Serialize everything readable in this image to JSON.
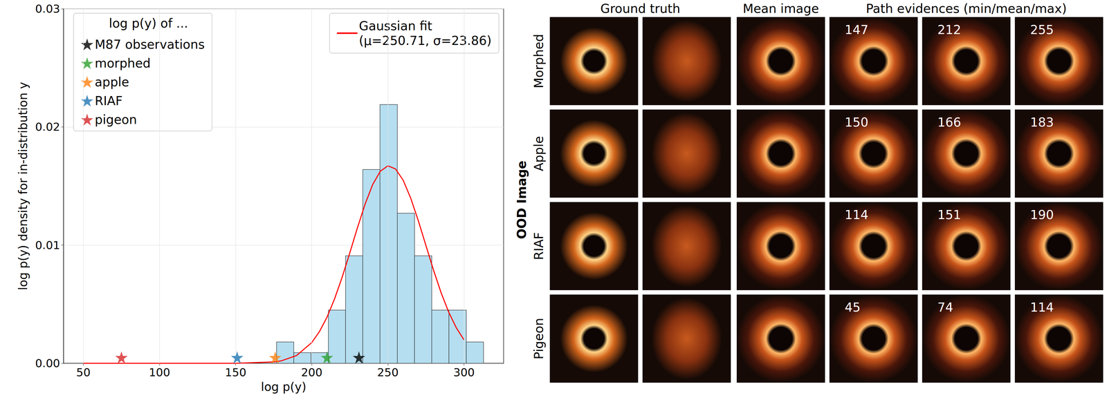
{
  "chart_data": {
    "type": "histogram",
    "x_label": "log p(y)",
    "y_label": "log p(y) density for in-distribution y",
    "bins": [
      176.9,
      188.2,
      199.5,
      210.9,
      222.2,
      233.5,
      244.8,
      256.2,
      267.5,
      278.8,
      290.1,
      301.5,
      312.8
    ],
    "values": [
      0.0018,
      0.0009,
      0.0009,
      0.0045,
      0.0091,
      0.0164,
      0.0219,
      0.0127,
      0.0091,
      0.0045,
      0.0045,
      0.0018
    ],
    "color": "#b5def0",
    "xlim": [
      37,
      326
    ],
    "xticks": [
      50,
      100,
      150,
      200,
      250,
      300
    ],
    "ylim": [
      0,
      0.03
    ],
    "yticks": [
      {
        "value": 0,
        "label": "0.00"
      },
      {
        "value": 0.01,
        "label": "0.01"
      },
      {
        "value": 0.02,
        "label": "0.02"
      },
      {
        "value": 0.03,
        "label": "0.03"
      }
    ],
    "grid": true,
    "legend": "top",
    "legend_title": "log p(y) of ...",
    "series": [
      {
        "name": "Gaussian fit\n(μ=250.71, σ=23.86)",
        "type": "line",
        "color": "#ff0000",
        "line_style": "solid",
        "x": [
          50,
          100,
          150,
          175,
          180,
          190,
          200,
          205,
          210,
          215,
          220,
          225,
          230,
          235,
          240,
          245,
          250,
          255,
          260,
          265,
          270,
          275,
          280,
          285,
          290,
          295,
          300
        ],
        "values": [
          0,
          0,
          2e-06,
          0.000109,
          0.000207,
          0.000657,
          0.00175,
          0.00267,
          0.0039,
          0.00546,
          0.0073,
          0.00935,
          0.01147,
          0.01346,
          0.01512,
          0.01625,
          0.01671,
          0.01645,
          0.0155,
          0.01397,
          0.01206,
          0.00996,
          0.00787,
          0.00595,
          0.00431,
          0.00299,
          0.00198
        ]
      },
      {
        "name": "M87 observations",
        "type": "scatter",
        "marker": "star",
        "color": "#000000",
        "x": [
          231
        ],
        "values": [
          0.0005
        ]
      },
      {
        "name": "morphed",
        "type": "scatter",
        "marker": "star",
        "color": "#2ca02c",
        "x": [
          210
        ],
        "values": [
          0.0005
        ]
      },
      {
        "name": "apple",
        "type": "scatter",
        "marker": "star",
        "color": "#ff7f0e",
        "x": [
          176
        ],
        "values": [
          0.0005
        ]
      },
      {
        "name": "RIAF",
        "type": "scatter",
        "marker": "star",
        "color": "#1f77b4",
        "x": [
          151
        ],
        "values": [
          0.0005
        ]
      },
      {
        "name": "pigeon",
        "type": "scatter",
        "marker": "star",
        "color": "#d62728",
        "x": [
          75
        ],
        "values": [
          0.0005
        ]
      }
    ]
  },
  "image_grid": {
    "column_headers": [
      "Ground truth",
      "Mean image",
      "Path evidences (min/mean/max)"
    ],
    "group_label": "OOD Image",
    "rows": [
      {
        "label": "Morphed",
        "path_evidences": [
          147,
          212,
          255
        ]
      },
      {
        "label": "Apple",
        "path_evidences": [
          150,
          166,
          183
        ]
      },
      {
        "label": "RIAF",
        "path_evidences": [
          114,
          151,
          190
        ]
      },
      {
        "label": "Pigeon",
        "path_evidences": [
          45,
          74,
          114
        ]
      }
    ]
  }
}
